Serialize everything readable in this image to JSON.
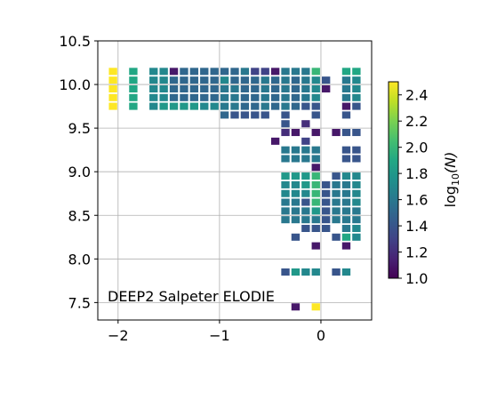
{
  "chart_data": {
    "type": "heatmap",
    "annotation": "DEEP2 Salpeter ELODIE",
    "xlim": [
      -2.2,
      0.5
    ],
    "ylim": [
      7.3,
      10.5
    ],
    "x_ticks": [
      -2,
      -1,
      0
    ],
    "x_tick_labels": [
      "−2",
      "−1",
      "0"
    ],
    "y_ticks": [
      7.5,
      8.0,
      8.5,
      9.0,
      9.5,
      10.0,
      10.5
    ],
    "y_tick_labels": [
      "7.5",
      "8.0",
      "8.5",
      "9.0",
      "9.5",
      "10.0",
      "10.5"
    ],
    "grid": true,
    "colorbar": {
      "label_main": "log",
      "label_sub": "10",
      "label_arg": "(N)",
      "range": [
        1.0,
        2.5
      ],
      "ticks": [
        1.0,
        1.2,
        1.4,
        1.6,
        1.8,
        2.0,
        2.2,
        2.4
      ],
      "tick_labels": [
        "1.0",
        "1.2",
        "1.4",
        "1.6",
        "1.8",
        "2.0",
        "2.2",
        "2.4"
      ],
      "colormap": "viridis"
    },
    "cells": [
      {
        "x": -2.05,
        "y": 10.15,
        "v": 2.5
      },
      {
        "x": -2.05,
        "y": 10.05,
        "v": 2.5
      },
      {
        "x": -2.05,
        "y": 9.95,
        "v": 2.5
      },
      {
        "x": -2.05,
        "y": 9.85,
        "v": 2.5
      },
      {
        "x": -2.05,
        "y": 9.75,
        "v": 2.5
      },
      {
        "x": -1.85,
        "y": 10.15,
        "v": 1.9
      },
      {
        "x": -1.85,
        "y": 10.05,
        "v": 1.9
      },
      {
        "x": -1.85,
        "y": 9.95,
        "v": 1.9
      },
      {
        "x": -1.85,
        "y": 9.85,
        "v": 1.9
      },
      {
        "x": -1.85,
        "y": 9.75,
        "v": 1.9
      },
      {
        "x": -1.65,
        "y": 10.15,
        "v": 1.7
      },
      {
        "x": -1.65,
        "y": 10.05,
        "v": 1.7
      },
      {
        "x": -1.65,
        "y": 9.95,
        "v": 1.7
      },
      {
        "x": -1.65,
        "y": 9.85,
        "v": 1.7
      },
      {
        "x": -1.65,
        "y": 9.75,
        "v": 1.7
      },
      {
        "x": -1.55,
        "y": 10.15,
        "v": 1.7
      },
      {
        "x": -1.55,
        "y": 10.05,
        "v": 1.7
      },
      {
        "x": -1.55,
        "y": 9.95,
        "v": 1.7
      },
      {
        "x": -1.55,
        "y": 9.85,
        "v": 1.7
      },
      {
        "x": -1.55,
        "y": 9.75,
        "v": 1.8
      },
      {
        "x": -1.45,
        "y": 10.15,
        "v": 1.1
      },
      {
        "x": -1.45,
        "y": 10.05,
        "v": 1.5
      },
      {
        "x": -1.45,
        "y": 9.95,
        "v": 1.5
      },
      {
        "x": -1.45,
        "y": 9.85,
        "v": 1.5
      },
      {
        "x": -1.45,
        "y": 9.75,
        "v": 1.8
      },
      {
        "x": -1.35,
        "y": 10.15,
        "v": 1.5
      },
      {
        "x": -1.35,
        "y": 10.05,
        "v": 1.5
      },
      {
        "x": -1.35,
        "y": 9.95,
        "v": 1.5
      },
      {
        "x": -1.35,
        "y": 9.85,
        "v": 1.5
      },
      {
        "x": -1.35,
        "y": 9.75,
        "v": 1.8
      },
      {
        "x": -1.25,
        "y": 10.15,
        "v": 1.5
      },
      {
        "x": -1.25,
        "y": 10.05,
        "v": 1.5
      },
      {
        "x": -1.25,
        "y": 9.95,
        "v": 1.5
      },
      {
        "x": -1.25,
        "y": 9.85,
        "v": 1.5
      },
      {
        "x": -1.25,
        "y": 9.75,
        "v": 1.8
      },
      {
        "x": -1.15,
        "y": 10.15,
        "v": 1.5
      },
      {
        "x": -1.15,
        "y": 10.05,
        "v": 1.5
      },
      {
        "x": -1.15,
        "y": 9.95,
        "v": 1.5
      },
      {
        "x": -1.15,
        "y": 9.85,
        "v": 1.5
      },
      {
        "x": -1.15,
        "y": 9.75,
        "v": 1.7
      },
      {
        "x": -1.05,
        "y": 10.15,
        "v": 1.5
      },
      {
        "x": -1.05,
        "y": 10.05,
        "v": 1.5
      },
      {
        "x": -1.05,
        "y": 9.95,
        "v": 1.5
      },
      {
        "x": -1.05,
        "y": 9.85,
        "v": 1.5
      },
      {
        "x": -1.05,
        "y": 9.75,
        "v": 1.7
      },
      {
        "x": -0.95,
        "y": 10.15,
        "v": 1.5
      },
      {
        "x": -0.95,
        "y": 10.05,
        "v": 1.7
      },
      {
        "x": -0.95,
        "y": 9.95,
        "v": 1.6
      },
      {
        "x": -0.95,
        "y": 9.85,
        "v": 1.6
      },
      {
        "x": -0.95,
        "y": 9.75,
        "v": 1.6
      },
      {
        "x": -0.95,
        "y": 9.65,
        "v": 1.5
      },
      {
        "x": -0.85,
        "y": 10.15,
        "v": 1.5
      },
      {
        "x": -0.85,
        "y": 10.05,
        "v": 1.5
      },
      {
        "x": -0.85,
        "y": 9.95,
        "v": 1.6
      },
      {
        "x": -0.85,
        "y": 9.85,
        "v": 1.6
      },
      {
        "x": -0.85,
        "y": 9.75,
        "v": 1.6
      },
      {
        "x": -0.85,
        "y": 9.65,
        "v": 1.4
      },
      {
        "x": -0.75,
        "y": 10.15,
        "v": 1.6
      },
      {
        "x": -0.75,
        "y": 10.05,
        "v": 1.5
      },
      {
        "x": -0.75,
        "y": 9.95,
        "v": 1.5
      },
      {
        "x": -0.75,
        "y": 9.85,
        "v": 1.5
      },
      {
        "x": -0.75,
        "y": 9.75,
        "v": 1.5
      },
      {
        "x": -0.75,
        "y": 9.65,
        "v": 1.4
      },
      {
        "x": -0.65,
        "y": 10.15,
        "v": 1.3
      },
      {
        "x": -0.65,
        "y": 10.05,
        "v": 1.5
      },
      {
        "x": -0.65,
        "y": 9.95,
        "v": 1.5
      },
      {
        "x": -0.65,
        "y": 9.85,
        "v": 1.5
      },
      {
        "x": -0.65,
        "y": 9.75,
        "v": 1.5
      },
      {
        "x": -0.65,
        "y": 9.65,
        "v": 1.4
      },
      {
        "x": -0.55,
        "y": 10.15,
        "v": 1.3
      },
      {
        "x": -0.55,
        "y": 10.05,
        "v": 1.6
      },
      {
        "x": -0.55,
        "y": 9.95,
        "v": 1.6
      },
      {
        "x": -0.55,
        "y": 9.85,
        "v": 1.6
      },
      {
        "x": -0.55,
        "y": 9.75,
        "v": 1.6
      },
      {
        "x": -0.55,
        "y": 9.65,
        "v": 1.4
      },
      {
        "x": -0.45,
        "y": 10.15,
        "v": 1.1
      },
      {
        "x": -0.45,
        "y": 10.05,
        "v": 1.5
      },
      {
        "x": -0.45,
        "y": 9.95,
        "v": 1.5
      },
      {
        "x": -0.45,
        "y": 9.85,
        "v": 1.5
      },
      {
        "x": -0.45,
        "y": 9.75,
        "v": 1.5
      },
      {
        "x": -0.35,
        "y": 10.15,
        "v": 1.6
      },
      {
        "x": -0.35,
        "y": 10.05,
        "v": 1.6
      },
      {
        "x": -0.35,
        "y": 9.95,
        "v": 1.6
      },
      {
        "x": -0.35,
        "y": 9.85,
        "v": 1.6
      },
      {
        "x": -0.35,
        "y": 9.75,
        "v": 1.6
      },
      {
        "x": -0.35,
        "y": 9.65,
        "v": 1.4
      },
      {
        "x": -0.35,
        "y": 9.55,
        "v": 1.4
      },
      {
        "x": -0.35,
        "y": 9.45,
        "v": 1.2
      },
      {
        "x": -0.25,
        "y": 10.15,
        "v": 1.6
      },
      {
        "x": -0.25,
        "y": 10.05,
        "v": 1.5
      },
      {
        "x": -0.25,
        "y": 9.95,
        "v": 1.5
      },
      {
        "x": -0.25,
        "y": 9.85,
        "v": 1.5
      },
      {
        "x": -0.25,
        "y": 9.75,
        "v": 1.5
      },
      {
        "x": -0.15,
        "y": 10.15,
        "v": 1.6
      },
      {
        "x": -0.15,
        "y": 10.05,
        "v": 1.6
      },
      {
        "x": -0.15,
        "y": 9.95,
        "v": 1.6
      },
      {
        "x": -0.15,
        "y": 9.85,
        "v": 1.6
      },
      {
        "x": -0.15,
        "y": 9.75,
        "v": 1.4
      },
      {
        "x": -0.15,
        "y": 9.55,
        "v": 1.2
      },
      {
        "x": -0.05,
        "y": 10.15,
        "v": 2.0
      },
      {
        "x": -0.05,
        "y": 10.05,
        "v": 1.7
      },
      {
        "x": -0.05,
        "y": 9.95,
        "v": 1.7
      },
      {
        "x": -0.05,
        "y": 9.85,
        "v": 1.7
      },
      {
        "x": -0.05,
        "y": 9.75,
        "v": 1.4
      },
      {
        "x": -0.05,
        "y": 9.65,
        "v": 1.4
      },
      {
        "x": 0.05,
        "y": 10.05,
        "v": 1.4
      },
      {
        "x": 0.05,
        "y": 9.95,
        "v": 1.1
      },
      {
        "x": 0.25,
        "y": 10.15,
        "v": 1.9
      },
      {
        "x": 0.25,
        "y": 10.05,
        "v": 1.6
      },
      {
        "x": 0.25,
        "y": 9.95,
        "v": 1.6
      },
      {
        "x": 0.25,
        "y": 9.85,
        "v": 1.6
      },
      {
        "x": 0.25,
        "y": 9.75,
        "v": 1.1
      },
      {
        "x": 0.25,
        "y": 9.65,
        "v": 1.4
      },
      {
        "x": 0.35,
        "y": 10.15,
        "v": 1.9
      },
      {
        "x": 0.35,
        "y": 10.05,
        "v": 1.7
      },
      {
        "x": 0.35,
        "y": 9.95,
        "v": 1.7
      },
      {
        "x": 0.35,
        "y": 9.85,
        "v": 1.7
      },
      {
        "x": 0.35,
        "y": 9.75,
        "v": 1.4
      },
      {
        "x": -0.45,
        "y": 9.35,
        "v": 1.1
      },
      {
        "x": -0.25,
        "y": 9.45,
        "v": 1.1
      },
      {
        "x": -0.15,
        "y": 9.35,
        "v": 1.3
      },
      {
        "x": -0.05,
        "y": 9.45,
        "v": 1.1
      },
      {
        "x": 0.15,
        "y": 9.45,
        "v": 1.1
      },
      {
        "x": 0.25,
        "y": 9.45,
        "v": 1.4
      },
      {
        "x": 0.35,
        "y": 9.45,
        "v": 1.4
      },
      {
        "x": 0.25,
        "y": 9.25,
        "v": 1.4
      },
      {
        "x": 0.35,
        "y": 9.25,
        "v": 1.4
      },
      {
        "x": -0.35,
        "y": 9.25,
        "v": 1.6
      },
      {
        "x": -0.25,
        "y": 9.25,
        "v": 1.6
      },
      {
        "x": -0.15,
        "y": 9.25,
        "v": 1.6
      },
      {
        "x": -0.05,
        "y": 9.25,
        "v": 1.6
      },
      {
        "x": 0.25,
        "y": 9.15,
        "v": 1.4
      },
      {
        "x": 0.35,
        "y": 9.15,
        "v": 1.4
      },
      {
        "x": -0.35,
        "y": 9.15,
        "v": 1.6
      },
      {
        "x": -0.25,
        "y": 9.15,
        "v": 1.6
      },
      {
        "x": -0.15,
        "y": 9.15,
        "v": 1.6
      },
      {
        "x": -0.05,
        "y": 9.15,
        "v": 1.6
      },
      {
        "x": -0.05,
        "y": 9.05,
        "v": 1.1
      },
      {
        "x": -0.35,
        "y": 8.95,
        "v": 1.8
      },
      {
        "x": -0.35,
        "y": 8.85,
        "v": 1.7
      },
      {
        "x": -0.35,
        "y": 8.75,
        "v": 1.7
      },
      {
        "x": -0.35,
        "y": 8.65,
        "v": 1.6
      },
      {
        "x": -0.35,
        "y": 8.55,
        "v": 1.6
      },
      {
        "x": -0.35,
        "y": 8.45,
        "v": 1.6
      },
      {
        "x": -0.25,
        "y": 8.95,
        "v": 1.8
      },
      {
        "x": -0.25,
        "y": 8.85,
        "v": 1.7
      },
      {
        "x": -0.25,
        "y": 8.75,
        "v": 1.7
      },
      {
        "x": -0.25,
        "y": 8.65,
        "v": 1.6
      },
      {
        "x": -0.25,
        "y": 8.55,
        "v": 1.6
      },
      {
        "x": -0.25,
        "y": 8.45,
        "v": 1.6
      },
      {
        "x": -0.25,
        "y": 8.25,
        "v": 1.4
      },
      {
        "x": -0.15,
        "y": 8.95,
        "v": 1.8
      },
      {
        "x": -0.15,
        "y": 8.85,
        "v": 1.8
      },
      {
        "x": -0.15,
        "y": 8.75,
        "v": 1.7
      },
      {
        "x": -0.15,
        "y": 8.65,
        "v": 1.4
      },
      {
        "x": -0.15,
        "y": 8.55,
        "v": 1.6
      },
      {
        "x": -0.15,
        "y": 8.45,
        "v": 1.6
      },
      {
        "x": -0.15,
        "y": 8.35,
        "v": 1.4
      },
      {
        "x": -0.05,
        "y": 8.95,
        "v": 2.0
      },
      {
        "x": -0.05,
        "y": 8.85,
        "v": 2.0
      },
      {
        "x": -0.05,
        "y": 8.75,
        "v": 2.0
      },
      {
        "x": -0.05,
        "y": 8.65,
        "v": 2.0
      },
      {
        "x": -0.05,
        "y": 8.55,
        "v": 1.8
      },
      {
        "x": -0.05,
        "y": 8.45,
        "v": 1.6
      },
      {
        "x": -0.05,
        "y": 8.35,
        "v": 1.4
      },
      {
        "x": -0.05,
        "y": 8.15,
        "v": 1.1
      },
      {
        "x": 0.05,
        "y": 8.85,
        "v": 1.4
      },
      {
        "x": 0.05,
        "y": 8.75,
        "v": 1.4
      },
      {
        "x": 0.05,
        "y": 8.65,
        "v": 1.4
      },
      {
        "x": 0.05,
        "y": 8.55,
        "v": 1.4
      },
      {
        "x": 0.05,
        "y": 8.45,
        "v": 1.4
      },
      {
        "x": 0.05,
        "y": 8.35,
        "v": 1.4
      },
      {
        "x": 0.15,
        "y": 8.95,
        "v": 1.4
      },
      {
        "x": 0.15,
        "y": 8.85,
        "v": 1.6
      },
      {
        "x": 0.15,
        "y": 8.75,
        "v": 1.6
      },
      {
        "x": 0.15,
        "y": 8.65,
        "v": 1.6
      },
      {
        "x": 0.15,
        "y": 8.55,
        "v": 1.6
      },
      {
        "x": 0.15,
        "y": 8.45,
        "v": 1.6
      },
      {
        "x": 0.15,
        "y": 8.25,
        "v": 1.4
      },
      {
        "x": 0.25,
        "y": 8.95,
        "v": 1.7
      },
      {
        "x": 0.25,
        "y": 8.85,
        "v": 1.6
      },
      {
        "x": 0.25,
        "y": 8.75,
        "v": 1.6
      },
      {
        "x": 0.25,
        "y": 8.65,
        "v": 1.6
      },
      {
        "x": 0.25,
        "y": 8.55,
        "v": 1.6
      },
      {
        "x": 0.25,
        "y": 8.45,
        "v": 1.6
      },
      {
        "x": 0.25,
        "y": 8.35,
        "v": 1.6
      },
      {
        "x": 0.25,
        "y": 8.25,
        "v": 1.9
      },
      {
        "x": 0.25,
        "y": 8.15,
        "v": 1.1
      },
      {
        "x": 0.35,
        "y": 8.95,
        "v": 1.7
      },
      {
        "x": 0.35,
        "y": 8.85,
        "v": 1.7
      },
      {
        "x": 0.35,
        "y": 8.75,
        "v": 1.7
      },
      {
        "x": 0.35,
        "y": 8.65,
        "v": 1.7
      },
      {
        "x": 0.35,
        "y": 8.55,
        "v": 1.6
      },
      {
        "x": 0.35,
        "y": 8.45,
        "v": 1.6
      },
      {
        "x": 0.35,
        "y": 8.35,
        "v": 1.7
      },
      {
        "x": 0.35,
        "y": 8.25,
        "v": 1.7
      },
      {
        "x": -0.35,
        "y": 7.85,
        "v": 1.4
      },
      {
        "x": -0.25,
        "y": 7.85,
        "v": 1.8
      },
      {
        "x": -0.15,
        "y": 7.85,
        "v": 1.7
      },
      {
        "x": -0.05,
        "y": 7.85,
        "v": 1.7
      },
      {
        "x": 0.15,
        "y": 7.85,
        "v": 1.4
      },
      {
        "x": 0.25,
        "y": 7.85,
        "v": 1.7
      },
      {
        "x": -0.25,
        "y": 7.45,
        "v": 1.1
      },
      {
        "x": -0.05,
        "y": 7.45,
        "v": 2.5
      }
    ]
  }
}
